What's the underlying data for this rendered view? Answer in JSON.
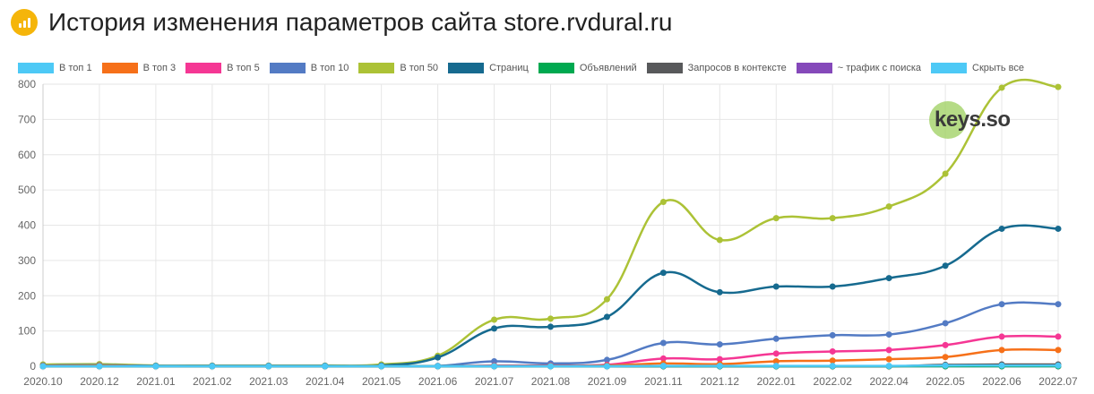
{
  "header": {
    "title": "История изменения параметров сайта store.rvdural.ru",
    "icon": "bar-chart-icon",
    "icon_color": "#f5b50a"
  },
  "watermark": {
    "text": "keys.so"
  },
  "chart_data": {
    "type": "line",
    "x": [
      "2020.10",
      "2020.12",
      "2021.01",
      "2021.02",
      "2021.03",
      "2021.04",
      "2021.05",
      "2021.06",
      "2021.07",
      "2021.08",
      "2021.09",
      "2021.11",
      "2021.12",
      "2022.01",
      "2022.02",
      "2022.04",
      "2022.05",
      "2022.06",
      "2022.07"
    ],
    "ylim": [
      0,
      800
    ],
    "yticks": [
      0,
      100,
      200,
      300,
      400,
      500,
      600,
      700,
      800
    ],
    "grid": true,
    "legend_position": "top",
    "series": [
      {
        "name": "В топ 1",
        "color": "#4dc9f6",
        "values": [
          0,
          0,
          0,
          0,
          0,
          0,
          0,
          0,
          0,
          0,
          0,
          1,
          1,
          1,
          1,
          1,
          2,
          2,
          2
        ]
      },
      {
        "name": "В топ 3",
        "color": "#f67019",
        "values": [
          1,
          2,
          0,
          0,
          0,
          0,
          0,
          0,
          1,
          1,
          2,
          8,
          6,
          14,
          16,
          20,
          26,
          46,
          46
        ]
      },
      {
        "name": "В топ 5",
        "color": "#f53794",
        "values": [
          1,
          2,
          0,
          0,
          0,
          0,
          0,
          0,
          2,
          2,
          4,
          22,
          20,
          36,
          42,
          46,
          60,
          84,
          84
        ]
      },
      {
        "name": "В топ 10",
        "color": "#537bc4",
        "values": [
          2,
          3,
          1,
          1,
          1,
          1,
          1,
          1,
          14,
          8,
          18,
          66,
          62,
          78,
          88,
          90,
          122,
          176,
          176
        ]
      },
      {
        "name": "В топ 50",
        "color": "#acc236",
        "values": [
          5,
          6,
          2,
          2,
          2,
          2,
          5,
          30,
          132,
          135,
          190,
          466,
          358,
          420,
          420,
          453,
          546,
          790,
          792
        ]
      },
      {
        "name": "Страниц",
        "color": "#166a8f",
        "values": [
          2,
          3,
          1,
          1,
          1,
          1,
          2,
          25,
          107,
          112,
          140,
          265,
          210,
          226,
          226,
          250,
          285,
          390,
          390
        ]
      },
      {
        "name": "Объявлений",
        "color": "#00a950",
        "values": [
          0,
          0,
          0,
          0,
          0,
          0,
          0,
          0,
          0,
          0,
          0,
          0,
          0,
          0,
          0,
          0,
          0,
          0,
          0
        ]
      },
      {
        "name": "Запросов в контексте",
        "color": "#58595b",
        "values": [
          0,
          0,
          0,
          0,
          0,
          0,
          0,
          0,
          0,
          0,
          0,
          0,
          0,
          0,
          0,
          0,
          4,
          5,
          5
        ]
      },
      {
        "name": "~ трафик с поиска",
        "color": "#8549ba",
        "values": [
          0,
          0,
          0,
          0,
          0,
          0,
          0,
          0,
          0,
          0,
          0,
          0,
          0,
          0,
          0,
          0,
          0,
          0,
          0
        ]
      }
    ],
    "hide_all": {
      "name": "Скрыть все",
      "color": "#4dc9f6"
    }
  }
}
